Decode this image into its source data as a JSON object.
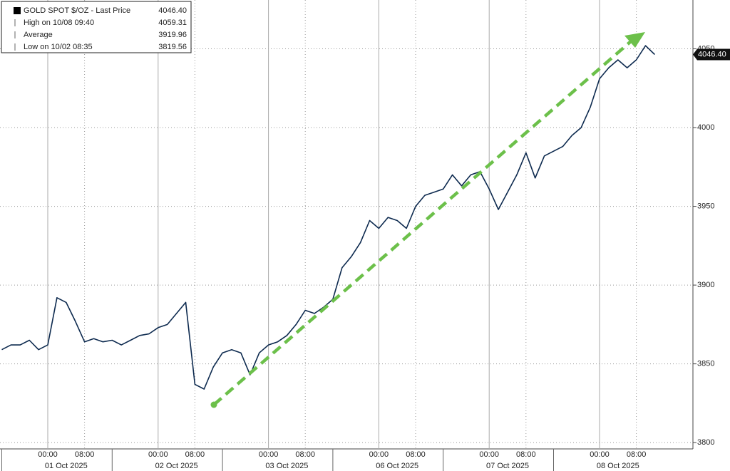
{
  "chart_data": {
    "type": "line",
    "legend": {
      "entries": [
        {
          "label": "GOLD SPOT $/OZ - Last Price",
          "value": "4046.40"
        },
        {
          "label": "High on 10/08 09:40",
          "value": "4059.31"
        },
        {
          "label": "Average",
          "value": "3919.96"
        },
        {
          "label": "Low on 10/02 08:35",
          "value": "3819.56"
        }
      ]
    },
    "categories": [
      null,
      null,
      null,
      null,
      null,
      "00:00",
      null,
      null,
      null,
      "08:00",
      null,
      null,
      null,
      null,
      null,
      null,
      null,
      "00:00",
      null,
      null,
      null,
      "08:00",
      null,
      null,
      null,
      null,
      null,
      null,
      null,
      "00:00",
      null,
      null,
      null,
      "08:00",
      null,
      null,
      null,
      null,
      null,
      null,
      null,
      "00:00",
      null,
      null,
      null,
      "08:00",
      null,
      null,
      null,
      null,
      null,
      null,
      null,
      "00:00",
      null,
      null,
      null,
      "08:00",
      null,
      null,
      null,
      null,
      null,
      null,
      null,
      "00:00",
      null,
      null,
      null,
      "08:00",
      null,
      null
    ],
    "x_groups": [
      {
        "label": "01 Oct 2025",
        "span": [
          5,
          16
        ]
      },
      {
        "label": "02 Oct 2025",
        "span": [
          17,
          28
        ]
      },
      {
        "label": "03 Oct 2025",
        "span": [
          29,
          40
        ]
      },
      {
        "label": "06 Oct 2025",
        "span": [
          41,
          52
        ]
      },
      {
        "label": "07 Oct 2025",
        "span": [
          53,
          64
        ]
      },
      {
        "label": "08 Oct 2025",
        "span": [
          65,
          71
        ]
      }
    ],
    "series": [
      {
        "name": "GOLD SPOT $/OZ",
        "color": "#0d2a4f",
        "values": [
          3859,
          3862,
          3862,
          3865,
          3859,
          3862,
          3892,
          3889,
          3877,
          3864,
          3866,
          3864,
          3865,
          3862,
          3865,
          3868,
          3869,
          3873,
          3875,
          3882,
          3889,
          3837,
          3834,
          3848,
          3857,
          3859,
          3857,
          3843,
          3857,
          3862,
          3864,
          3868,
          3875,
          3884,
          3882,
          3886,
          3891,
          3911,
          3918,
          3927,
          3941,
          3936,
          3943,
          3941,
          3936,
          3950,
          3957,
          3959,
          3961,
          3970,
          3963,
          3970,
          3972,
          3961,
          3948,
          3959,
          3970,
          3984,
          3968,
          3982,
          3985,
          3988,
          3995,
          4000,
          4013,
          4031,
          4038,
          4043,
          4038,
          4043,
          4052,
          4046.4
        ]
      }
    ],
    "ylim": [
      3796,
      4081
    ],
    "yticks": [
      3800,
      3850,
      3900,
      3950,
      4000,
      4050
    ],
    "grid": true
  }
}
